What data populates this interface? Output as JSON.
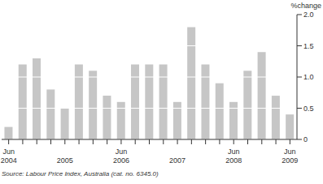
{
  "chart_data": {
    "type": "bar",
    "y_label": "%change",
    "source": "Source: Labour Price Index, Australia (cat. no. 6345.0)",
    "categories": [
      "Jun 2004",
      null,
      null,
      null,
      "2005",
      null,
      null,
      null,
      "Jun 2006",
      null,
      null,
      null,
      "2007",
      null,
      null,
      null,
      "Jun 2008",
      null,
      null,
      null,
      "Jun 2009"
    ],
    "values": [
      0.2,
      1.2,
      1.3,
      0.8,
      0.5,
      1.2,
      1.1,
      0.7,
      0.6,
      1.2,
      1.2,
      1.2,
      0.6,
      1.8,
      1.2,
      0.9,
      0.6,
      1.1,
      1.4,
      0.7,
      0.4
    ],
    "color": "#c6c6c6",
    "ylim": [
      0,
      2
    ],
    "yticks": [
      0,
      0.5,
      {
        "value": 1,
        "label": "1.0"
      },
      {
        "value": 1.5,
        "label": "1.5"
      },
      {
        "value": 2,
        "label": "2.0"
      }
    ],
    "grid": true
  }
}
